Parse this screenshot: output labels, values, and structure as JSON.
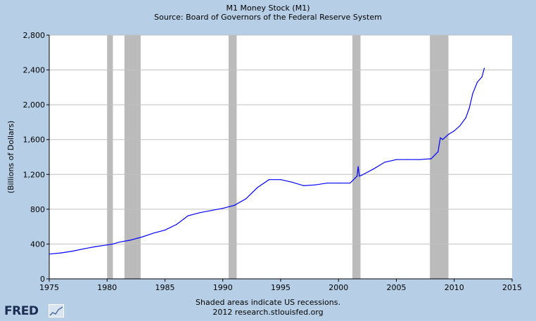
{
  "header": {
    "title": "M1 Money Stock (M1)",
    "subtitle": "Source: Board of Governors of the Federal Reserve System"
  },
  "footer": {
    "note": "Shaded areas indicate US recessions.",
    "credit": "2012 research.stlouisfed.org",
    "logo_text": "FRED"
  },
  "colors": {
    "line": "#0000ff",
    "recession": "#bbbbbb",
    "background": "#b6cfe6",
    "plot": "#ffffff"
  },
  "chart_data": {
    "type": "line",
    "title": "M1 Money Stock (M1)",
    "subtitle": "Source: Board of Governors of the Federal Reserve System",
    "xlabel": "",
    "ylabel": "(Billions of Dollars)",
    "xlim": [
      1975,
      2015
    ],
    "ylim": [
      0,
      2800
    ],
    "x_ticks": [
      "1975",
      "1980",
      "1985",
      "1990",
      "1995",
      "2000",
      "2005",
      "2010",
      "2015"
    ],
    "y_ticks": [
      "0",
      "400",
      "800",
      "1,200",
      "1,600",
      "2,000",
      "2,400",
      "2,800"
    ],
    "grid": true,
    "legend": "none",
    "recessions": [
      [
        1980.0,
        1980.5
      ],
      [
        1981.5,
        1982.9
      ],
      [
        1990.5,
        1991.2
      ],
      [
        2001.2,
        2001.9
      ],
      [
        2007.9,
        2009.5
      ]
    ],
    "series": [
      {
        "values": [
          [
            1975.0,
            285
          ],
          [
            1976.0,
            298
          ],
          [
            1977.0,
            318
          ],
          [
            1978.0,
            345
          ],
          [
            1979.0,
            370
          ],
          [
            1980.0,
            390
          ],
          [
            1980.5,
            400
          ],
          [
            1981.0,
            420
          ],
          [
            1982.0,
            445
          ],
          [
            1983.0,
            480
          ],
          [
            1984.0,
            525
          ],
          [
            1985.0,
            560
          ],
          [
            1986.0,
            625
          ],
          [
            1987.0,
            725
          ],
          [
            1988.0,
            760
          ],
          [
            1989.0,
            785
          ],
          [
            1990.0,
            810
          ],
          [
            1991.0,
            845
          ],
          [
            1992.0,
            920
          ],
          [
            1993.0,
            1050
          ],
          [
            1994.0,
            1140
          ],
          [
            1995.0,
            1140
          ],
          [
            1996.0,
            1110
          ],
          [
            1997.0,
            1070
          ],
          [
            1998.0,
            1080
          ],
          [
            1999.0,
            1100
          ],
          [
            2000.0,
            1100
          ],
          [
            2001.0,
            1100
          ],
          [
            2001.6,
            1180
          ],
          [
            2001.7,
            1290
          ],
          [
            2001.8,
            1180
          ],
          [
            2002.0,
            1190
          ],
          [
            2003.0,
            1260
          ],
          [
            2004.0,
            1340
          ],
          [
            2005.0,
            1370
          ],
          [
            2006.0,
            1370
          ],
          [
            2007.0,
            1370
          ],
          [
            2008.0,
            1380
          ],
          [
            2008.6,
            1460
          ],
          [
            2008.8,
            1620
          ],
          [
            2009.0,
            1600
          ],
          [
            2009.5,
            1660
          ],
          [
            2010.0,
            1700
          ],
          [
            2010.5,
            1760
          ],
          [
            2011.0,
            1850
          ],
          [
            2011.3,
            1960
          ],
          [
            2011.6,
            2130
          ],
          [
            2012.0,
            2260
          ],
          [
            2012.4,
            2320
          ],
          [
            2012.6,
            2420
          ]
        ]
      }
    ]
  }
}
